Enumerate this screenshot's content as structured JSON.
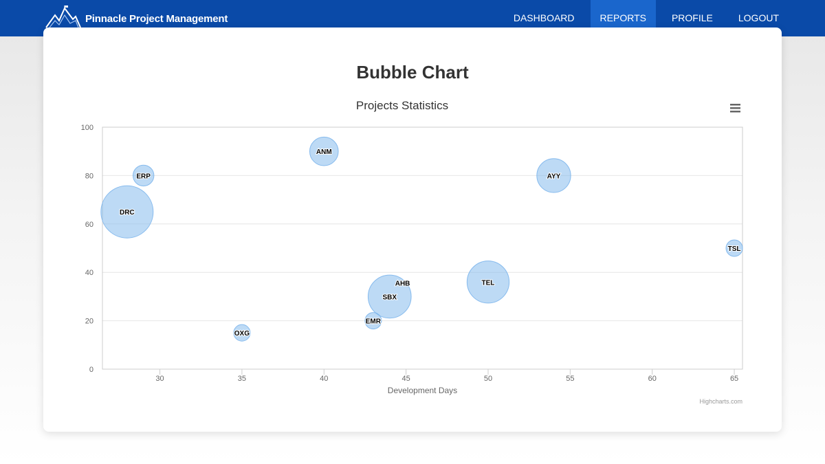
{
  "app": {
    "brand_name": "Pinnacle Project Management",
    "colors": {
      "navbar": "#0a4aa8",
      "nav_active": "#1a66cc",
      "bubble_fill": "#7cb5ec"
    }
  },
  "nav": {
    "items": [
      {
        "label": "DASHBOARD",
        "active": false
      },
      {
        "label": "REPORTS",
        "active": true
      },
      {
        "label": "PROFILE",
        "active": false
      },
      {
        "label": "LOGOUT",
        "active": false
      }
    ]
  },
  "page": {
    "title": "Bubble Chart"
  },
  "chart_menu_icon": "hamburger-menu-icon",
  "chart_data": {
    "type": "scatter",
    "subtype": "bubble",
    "title": "Projects Statistics",
    "xlabel": "Development Days",
    "ylabel": "",
    "xlim": [
      26.5,
      65.5
    ],
    "ylim": [
      0,
      100
    ],
    "xticks": [
      30,
      35,
      40,
      45,
      50,
      55,
      60,
      65
    ],
    "yticks": [
      0,
      20,
      40,
      60,
      80,
      100
    ],
    "grid": true,
    "legend": "none",
    "credits": "Highcharts.com",
    "points": [
      {
        "label": "DRC",
        "x": 28,
        "y": 65,
        "z": 100
      },
      {
        "label": "ERP",
        "x": 29,
        "y": 80,
        "z": 16
      },
      {
        "label": "ANM",
        "x": 40,
        "y": 90,
        "z": 30
      },
      {
        "label": "OXG",
        "x": 35,
        "y": 15,
        "z": 10
      },
      {
        "label": "EMR",
        "x": 43,
        "y": 20,
        "z": 10
      },
      {
        "label": "SBX",
        "x": 44,
        "y": 30,
        "z": 68
      },
      {
        "label": "AHB",
        "x": 44,
        "y": 30,
        "z": 68
      },
      {
        "label": "TEL",
        "x": 50,
        "y": 36,
        "z": 65
      },
      {
        "label": "AYY",
        "x": 54,
        "y": 80,
        "z": 42
      },
      {
        "label": "TSL",
        "x": 65,
        "y": 50,
        "z": 10
      }
    ]
  }
}
